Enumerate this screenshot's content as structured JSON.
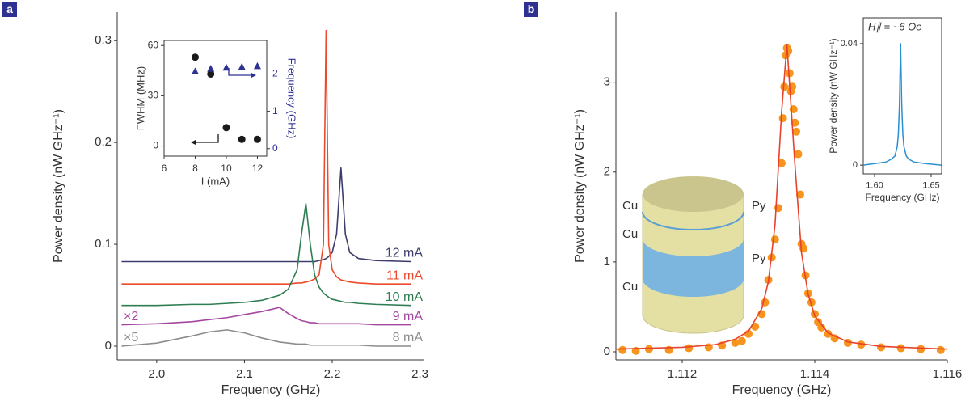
{
  "panels": [
    "a",
    "b"
  ],
  "diagram": {
    "labels": [
      "Cu",
      "Cu",
      "Cu",
      "Py",
      "Py"
    ]
  },
  "chart_data": [
    {
      "type": "line",
      "xlabel": "Frequency (GHz)",
      "ylabel": "Power density (nW GHz⁻¹)",
      "xlim": [
        1.955,
        2.305
      ],
      "xticks": [
        {
          "value": 2,
          "label": "2.0"
        },
        2.1,
        2.2,
        2.3
      ],
      "ylim": [
        -0.0135,
        0.328
      ],
      "yticks": [
        0,
        0.1,
        0.2,
        0.3
      ],
      "x": [
        1.96,
        2.0,
        2.04,
        2.06,
        2.08,
        2.1,
        2.12,
        2.14,
        2.15,
        2.16,
        2.165,
        2.17,
        2.175,
        2.18,
        2.185,
        2.19,
        2.193,
        2.196,
        2.2,
        2.205,
        2.21,
        2.215,
        2.22,
        2.23,
        2.25,
        2.29
      ],
      "series": [
        {
          "name": "12 mA",
          "color": "#3d3d6e",
          "values": [
            0.083,
            0.083,
            0.083,
            0.083,
            0.083,
            0.083,
            0.083,
            0.083,
            0.083,
            0.083,
            0.083,
            0.083,
            0.083,
            0.083,
            0.084,
            0.085,
            0.086,
            0.088,
            0.092,
            0.11,
            0.175,
            0.11,
            0.092,
            0.086,
            0.084,
            0.083
          ]
        },
        {
          "name": "11 mA",
          "color": "#ec4a2c",
          "values": [
            0.061,
            0.061,
            0.061,
            0.061,
            0.061,
            0.061,
            0.061,
            0.061,
            0.061,
            0.062,
            0.062,
            0.063,
            0.064,
            0.066,
            0.07,
            0.1,
            0.31,
            0.1,
            0.075,
            0.068,
            0.065,
            0.064,
            0.063,
            0.062,
            0.061,
            0.061
          ]
        },
        {
          "name": "10 mA",
          "color": "#2f7d52",
          "values": [
            0.04,
            0.04,
            0.041,
            0.041,
            0.042,
            0.043,
            0.045,
            0.05,
            0.056,
            0.075,
            0.11,
            0.14,
            0.1,
            0.07,
            0.058,
            0.052,
            0.05,
            0.048,
            0.046,
            0.045,
            0.044,
            0.043,
            0.043,
            0.042,
            0.041,
            0.04
          ]
        },
        {
          "name": "9 mA",
          "color": "#a3479f",
          "multiplier": "×2",
          "values": [
            0.021,
            0.022,
            0.024,
            0.026,
            0.028,
            0.031,
            0.034,
            0.038,
            0.032,
            0.027,
            0.025,
            0.024,
            0.023,
            0.023,
            0.022,
            0.022,
            0.022,
            0.022,
            0.022,
            0.022,
            0.022,
            0.022,
            0.022,
            0.022,
            0.021,
            0.021
          ]
        },
        {
          "name": "8 mA",
          "color": "#8c8c8c",
          "multiplier": "×5",
          "values": [
            0,
            0.003,
            0.01,
            0.014,
            0.016,
            0.013,
            0.008,
            0.004,
            0.003,
            0.002,
            0.002,
            0.002,
            0.001,
            0.001,
            0.001,
            0.001,
            0.001,
            0.001,
            0.001,
            0.001,
            0.001,
            0.001,
            0.001,
            0.001,
            0,
            0
          ]
        }
      ]
    },
    {
      "type": "scatter",
      "xlabel": "I (mA)",
      "ylabel": "FWHM (MHz)",
      "y2label": "Frequency (GHz)",
      "y2color": "#2e3192",
      "xlim": [
        6,
        12.6
      ],
      "xticks": [
        6,
        8,
        10,
        12
      ],
      "ylim": [
        -6,
        63
      ],
      "yticks": [
        0,
        30,
        60
      ],
      "y2lim": [
        -0.2,
        2.9
      ],
      "y2ticks": [
        0,
        1,
        2
      ],
      "x": [
        8,
        9,
        10,
        11,
        12
      ],
      "series": [
        {
          "color": "#1a1a1a",
          "marker": "circle",
          "values": [
            53,
            43,
            11,
            4,
            4
          ]
        },
        {
          "color": "#2e3192",
          "marker": "triangle",
          "axis": "y2",
          "values": [
            2.07,
            2.14,
            2.17,
            2.19,
            2.21
          ]
        }
      ]
    },
    {
      "type": "scatter",
      "xlabel": "Frequency (GHz)",
      "ylabel": "Power density (nW GHz⁻¹)",
      "xlim": [
        1.111,
        1.116
      ],
      "xticks": [
        1.112,
        1.114,
        1.116
      ],
      "ylim": [
        -0.09,
        3.78
      ],
      "yticks": [
        0,
        1,
        2,
        3
      ],
      "series": [
        {
          "color": "#f7941d",
          "marker": "circle",
          "x": [
            1.1111,
            1.1113,
            1.1115,
            1.1118,
            1.1121,
            1.1124,
            1.1126,
            1.1128,
            1.1129,
            1.113,
            1.1131,
            1.1132,
            1.11325,
            1.1133,
            1.11335,
            1.1134,
            1.11345,
            1.1135,
            1.11352,
            1.11354,
            1.11356,
            1.11358,
            1.1136,
            1.11362,
            1.11364,
            1.11366,
            1.11368,
            1.1137,
            1.11372,
            1.11375,
            1.11378,
            1.1138,
            1.11383,
            1.11386,
            1.1139,
            1.11395,
            1.114,
            1.11405,
            1.1141,
            1.1142,
            1.1143,
            1.1145,
            1.1147,
            1.115,
            1.1153,
            1.1156,
            1.1159
          ],
          "values": [
            0.02,
            0.01,
            0.03,
            0.02,
            0.04,
            0.05,
            0.07,
            0.1,
            0.12,
            0.2,
            0.28,
            0.42,
            0.55,
            0.8,
            1.05,
            1.25,
            1.6,
            2.1,
            2.6,
            2.95,
            3.3,
            3.38,
            3.35,
            3.1,
            2.9,
            2.95,
            2.7,
            2.55,
            2.45,
            2.2,
            1.75,
            1.2,
            1.15,
            0.85,
            0.65,
            0.55,
            0.42,
            0.33,
            0.27,
            0.2,
            0.15,
            0.1,
            0.08,
            0.05,
            0.04,
            0.03,
            0.02
          ]
        },
        {
          "color": "#e8412c",
          "type": "line",
          "x": [
            1.111,
            1.1115,
            1.112,
            1.1125,
            1.1128,
            1.113,
            1.1132,
            1.1133,
            1.1134,
            1.1135,
            1.11358,
            1.1137,
            1.1138,
            1.1139,
            1.114,
            1.1142,
            1.1145,
            1.115,
            1.116
          ],
          "values": [
            0.03,
            0.04,
            0.05,
            0.08,
            0.14,
            0.23,
            0.48,
            0.78,
            1.41,
            2.67,
            3.42,
            2.09,
            1.1,
            0.64,
            0.4,
            0.21,
            0.11,
            0.06,
            0.03
          ]
        }
      ]
    },
    {
      "type": "line",
      "title": "H∥ = ~6 Oe",
      "xlabel": "Frequency (GHz)",
      "ylabel": "Power density (nW GHz⁻¹)",
      "xlim": [
        1.59,
        1.6593
      ],
      "xticks": [
        {
          "value": 1.6,
          "label": "1.60"
        },
        1.65
      ],
      "ylim": [
        -0.0029,
        0.0485
      ],
      "yticks": [
        0,
        0.04
      ],
      "x": [
        1.59,
        1.6,
        1.61,
        1.615,
        1.618,
        1.62,
        1.621,
        1.622,
        1.623,
        1.624,
        1.625,
        1.626,
        1.628,
        1.63,
        1.635,
        1.645,
        1.659
      ],
      "series": [
        {
          "color": "#2a8fd0",
          "values": [
            0,
            0.0005,
            0.001,
            0.002,
            0.003,
            0.006,
            0.01,
            0.02,
            0.04,
            0.02,
            0.01,
            0.006,
            0.003,
            0.002,
            0.001,
            0.0005,
            0
          ]
        }
      ]
    }
  ]
}
